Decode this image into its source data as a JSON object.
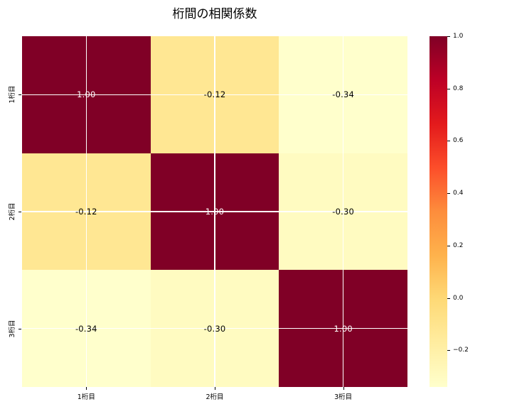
{
  "figure": {
    "background": "#ffffff"
  },
  "chart_data": {
    "type": "heatmap",
    "title": "桁間の相関係数",
    "categories": [
      "1桁目",
      "2桁目",
      "3桁目"
    ],
    "x_tick_labels": [
      "1桁目",
      "2桁目",
      "3桁目"
    ],
    "y_tick_labels": [
      "1桁目",
      "2桁目",
      "3桁目"
    ],
    "matrix": [
      [
        1.0,
        -0.12,
        -0.34
      ],
      [
        -0.12,
        1.0,
        -0.3
      ],
      [
        -0.34,
        -0.3,
        1.0
      ]
    ],
    "annotations": [
      [
        "1.00",
        "-0.12",
        "-0.34"
      ],
      [
        "-0.12",
        "1.00",
        "-0.30"
      ],
      [
        "-0.34",
        "-0.30",
        "1.00"
      ]
    ],
    "vmin": -0.34,
    "vmax": 1.0,
    "grid": true,
    "gridline_color": "#ffffff",
    "colormap": {
      "name": "YlOrRd",
      "stops": [
        "#ffffcc",
        "#ffeda0",
        "#fed976",
        "#feb24c",
        "#fd8d3c",
        "#fc4e2a",
        "#e31a1c",
        "#bd0026",
        "#800026"
      ]
    },
    "annotation_colors": {
      "on_dark": "#ffffff",
      "on_light": "#000000"
    },
    "colorbar": {
      "position": "right",
      "ticks": [
        {
          "label": "1.0",
          "value": 1.0
        },
        {
          "label": "0.8",
          "value": 0.8
        },
        {
          "label": "0.6",
          "value": 0.6
        },
        {
          "label": "0.4",
          "value": 0.4
        },
        {
          "label": "0.2",
          "value": 0.2
        },
        {
          "label": "0.0",
          "value": 0.0
        },
        {
          "label": "−0.2",
          "value": -0.2
        }
      ]
    }
  }
}
